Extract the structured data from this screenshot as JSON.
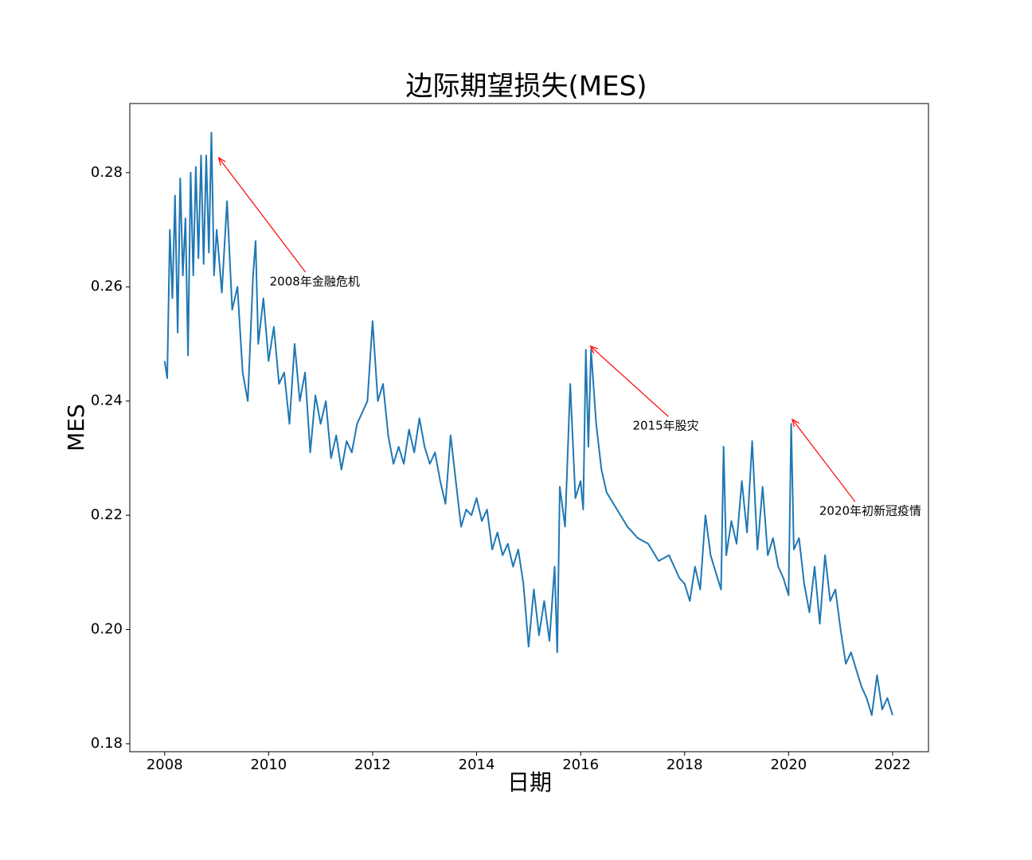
{
  "chart_data": {
    "type": "line",
    "title": "边际期望损失(MES)",
    "xlabel": "日期",
    "ylabel": "MES",
    "color": "#1f77b4",
    "x": [
      2008.0,
      2008.05,
      2008.1,
      2008.15,
      2008.2,
      2008.25,
      2008.3,
      2008.35,
      2008.4,
      2008.45,
      2008.5,
      2008.55,
      2008.6,
      2008.65,
      2008.7,
      2008.75,
      2008.8,
      2008.85,
      2008.9,
      2008.95,
      2009.0,
      2009.1,
      2009.2,
      2009.3,
      2009.4,
      2009.5,
      2009.6,
      2009.7,
      2009.75,
      2009.8,
      2009.9,
      2010.0,
      2010.1,
      2010.2,
      2010.3,
      2010.4,
      2010.5,
      2010.6,
      2010.7,
      2010.8,
      2010.9,
      2011.0,
      2011.1,
      2011.2,
      2011.3,
      2011.4,
      2011.5,
      2011.6,
      2011.7,
      2011.8,
      2011.9,
      2012.0,
      2012.1,
      2012.2,
      2012.3,
      2012.4,
      2012.5,
      2012.6,
      2012.7,
      2012.8,
      2012.9,
      2013.0,
      2013.1,
      2013.2,
      2013.3,
      2013.4,
      2013.5,
      2013.6,
      2013.7,
      2013.8,
      2013.9,
      2014.0,
      2014.1,
      2014.2,
      2014.3,
      2014.4,
      2014.5,
      2014.6,
      2014.7,
      2014.8,
      2014.9,
      2015.0,
      2015.1,
      2015.2,
      2015.3,
      2015.4,
      2015.5,
      2015.55,
      2015.6,
      2015.7,
      2015.8,
      2015.9,
      2016.0,
      2016.05,
      2016.1,
      2016.15,
      2016.2,
      2016.3,
      2016.4,
      2016.5,
      2016.7,
      2016.9,
      2017.1,
      2017.3,
      2017.5,
      2017.7,
      2017.9,
      2018.0,
      2018.1,
      2018.2,
      2018.3,
      2018.4,
      2018.5,
      2018.6,
      2018.7,
      2018.75,
      2018.8,
      2018.9,
      2019.0,
      2019.1,
      2019.2,
      2019.3,
      2019.4,
      2019.5,
      2019.6,
      2019.7,
      2019.8,
      2019.9,
      2020.0,
      2020.05,
      2020.1,
      2020.2,
      2020.3,
      2020.4,
      2020.5,
      2020.6,
      2020.7,
      2020.8,
      2020.9,
      2021.0,
      2021.1,
      2021.2,
      2021.3,
      2021.4,
      2021.5,
      2021.6,
      2021.7,
      2021.8,
      2021.9,
      2022.0
    ],
    "values": [
      0.247,
      0.244,
      0.27,
      0.258,
      0.276,
      0.252,
      0.279,
      0.262,
      0.272,
      0.248,
      0.28,
      0.262,
      0.281,
      0.265,
      0.283,
      0.264,
      0.283,
      0.266,
      0.287,
      0.262,
      0.27,
      0.259,
      0.275,
      0.256,
      0.26,
      0.245,
      0.24,
      0.262,
      0.268,
      0.25,
      0.258,
      0.247,
      0.253,
      0.243,
      0.245,
      0.236,
      0.25,
      0.24,
      0.245,
      0.231,
      0.241,
      0.236,
      0.24,
      0.23,
      0.234,
      0.228,
      0.233,
      0.231,
      0.236,
      0.238,
      0.24,
      0.254,
      0.24,
      0.243,
      0.234,
      0.229,
      0.232,
      0.229,
      0.235,
      0.231,
      0.237,
      0.232,
      0.229,
      0.231,
      0.226,
      0.222,
      0.234,
      0.226,
      0.218,
      0.221,
      0.22,
      0.223,
      0.219,
      0.221,
      0.214,
      0.217,
      0.213,
      0.215,
      0.211,
      0.214,
      0.208,
      0.197,
      0.207,
      0.199,
      0.205,
      0.198,
      0.211,
      0.196,
      0.225,
      0.218,
      0.243,
      0.223,
      0.226,
      0.221,
      0.249,
      0.232,
      0.249,
      0.236,
      0.228,
      0.224,
      0.221,
      0.218,
      0.216,
      0.215,
      0.212,
      0.213,
      0.209,
      0.208,
      0.205,
      0.211,
      0.207,
      0.22,
      0.213,
      0.21,
      0.207,
      0.232,
      0.213,
      0.219,
      0.215,
      0.226,
      0.217,
      0.233,
      0.214,
      0.225,
      0.213,
      0.216,
      0.211,
      0.209,
      0.206,
      0.236,
      0.214,
      0.216,
      0.208,
      0.203,
      0.211,
      0.201,
      0.213,
      0.205,
      0.207,
      0.2,
      0.194,
      0.196,
      0.193,
      0.19,
      0.188,
      0.185,
      0.192,
      0.186,
      0.188,
      0.185
    ],
    "xlim": [
      2007.33,
      2022.69
    ],
    "xticks": [
      2008,
      2010,
      2012,
      2014,
      2016,
      2018,
      2020,
      2022
    ],
    "ylim": [
      0.1786,
      0.2921
    ],
    "yticks": [
      0.18,
      {
        "value": 0.2,
        "label": "0.20"
      },
      0.22,
      0.24,
      0.26,
      0.28
    ],
    "annotations": [
      {
        "text": "2008年金融危机",
        "xy": [
          2009.04,
          0.2826
        ],
        "xytext": [
          2010.02,
          0.2609
        ],
        "color": "red"
      },
      {
        "text": "2015年股灾",
        "xy": [
          2016.19,
          0.2496
        ],
        "xytext": [
          2017.0,
          0.2356
        ],
        "color": "red"
      },
      {
        "text": "2020年初新冠疫情",
        "xy": [
          2020.07,
          0.2368
        ],
        "xytext": [
          2020.59,
          0.2207
        ],
        "color": "red"
      }
    ]
  }
}
